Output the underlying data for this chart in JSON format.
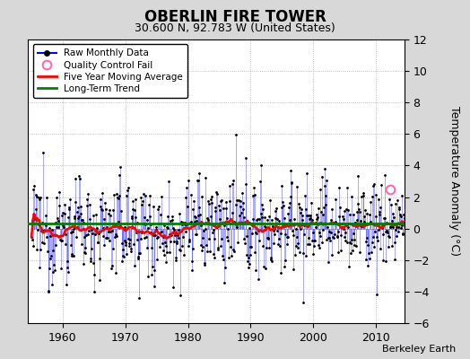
{
  "title": "OBERLIN FIRE TOWER",
  "subtitle": "30.600 N, 92.783 W (United States)",
  "ylabel": "Temperature Anomaly (°C)",
  "footer": "Berkeley Earth",
  "xlim": [
    1954.5,
    2014.5
  ],
  "ylim": [
    -6,
    12
  ],
  "yticks": [
    -6,
    -4,
    -2,
    0,
    2,
    4,
    6,
    8,
    10,
    12
  ],
  "xticks": [
    1960,
    1970,
    1980,
    1990,
    2000,
    2010
  ],
  "bg_color": "#d8d8d8",
  "plot_bg_color": "#ffffff",
  "seed": 12345,
  "start_year": 1955.0,
  "end_year": 2014.0,
  "n_months": 720,
  "qc_fail_year": 2012.3,
  "qc_fail_value": 2.5,
  "trend_y": 0.35,
  "ma_window": 60
}
